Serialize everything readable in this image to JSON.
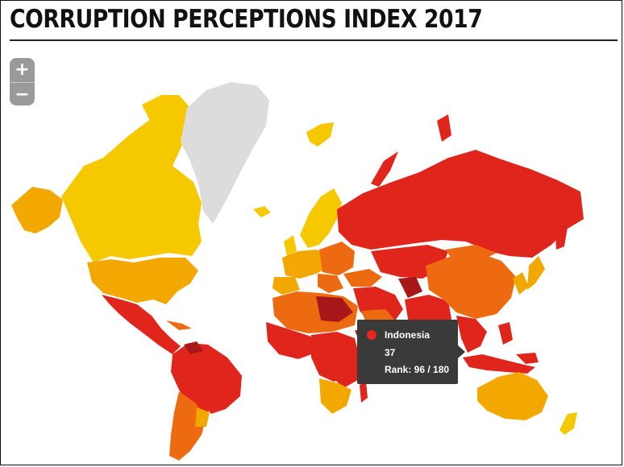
{
  "title": "CORRUPTION PERCEPTIONS INDEX 2017",
  "zoom": {
    "in_label": "+",
    "out_label": "−"
  },
  "legend_colors": {
    "very_clean": "#f5c800",
    "clean": "#f2a800",
    "medium": "#ee6a10",
    "corrupt": "#e0261c",
    "very_corrupt": "#a81818",
    "no_data": "#dcdcdc"
  },
  "tooltip": {
    "marker_color": "#e8261c",
    "country": "Indonesia",
    "score": "37",
    "rank": "Rank: 96 / 180"
  }
}
